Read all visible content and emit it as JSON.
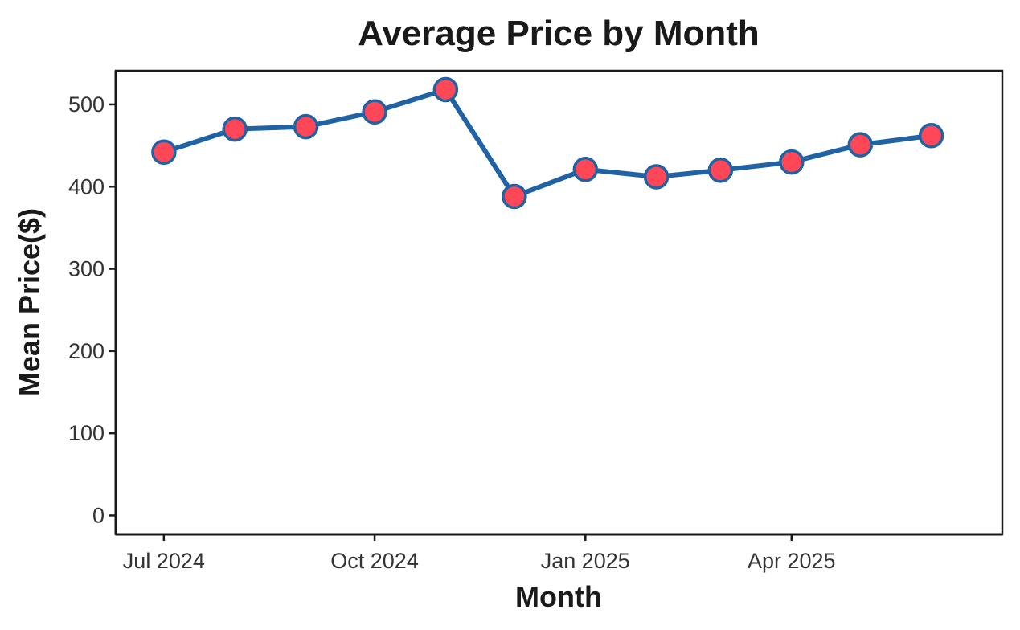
{
  "chart_data": {
    "type": "line",
    "title": "Average Price by Month",
    "xlabel": "Month",
    "ylabel": "Mean Price($)",
    "x": [
      "2024-07-01",
      "2024-08-01",
      "2024-09-01",
      "2024-10-01",
      "2024-11-01",
      "2024-12-01",
      "2025-01-01",
      "2025-02-01",
      "2025-03-01",
      "2025-04-01",
      "2025-05-01",
      "2025-06-01"
    ],
    "series": [
      {
        "values": [
          442,
          470,
          473,
          491,
          518,
          388,
          421,
          412,
          420,
          430,
          451,
          462
        ]
      }
    ],
    "xticks": [
      {
        "date": "2024-07-01",
        "label": "Jul 2024"
      },
      {
        "date": "2024-10-01",
        "label": "Oct 2024"
      },
      {
        "date": "2025-01-01",
        "label": "Jan 2025"
      },
      {
        "date": "2025-04-01",
        "label": "Apr 2025"
      }
    ],
    "yticks": [
      0,
      100,
      200,
      300,
      400,
      500
    ],
    "xlim": [
      "2024-06-10",
      "2025-07-02"
    ],
    "ylim": [
      -23,
      541
    ],
    "grid": false,
    "colors": {
      "line": "#1f63a5",
      "point_fill": "#ff4757",
      "point_stroke": "#1f63a5"
    }
  }
}
